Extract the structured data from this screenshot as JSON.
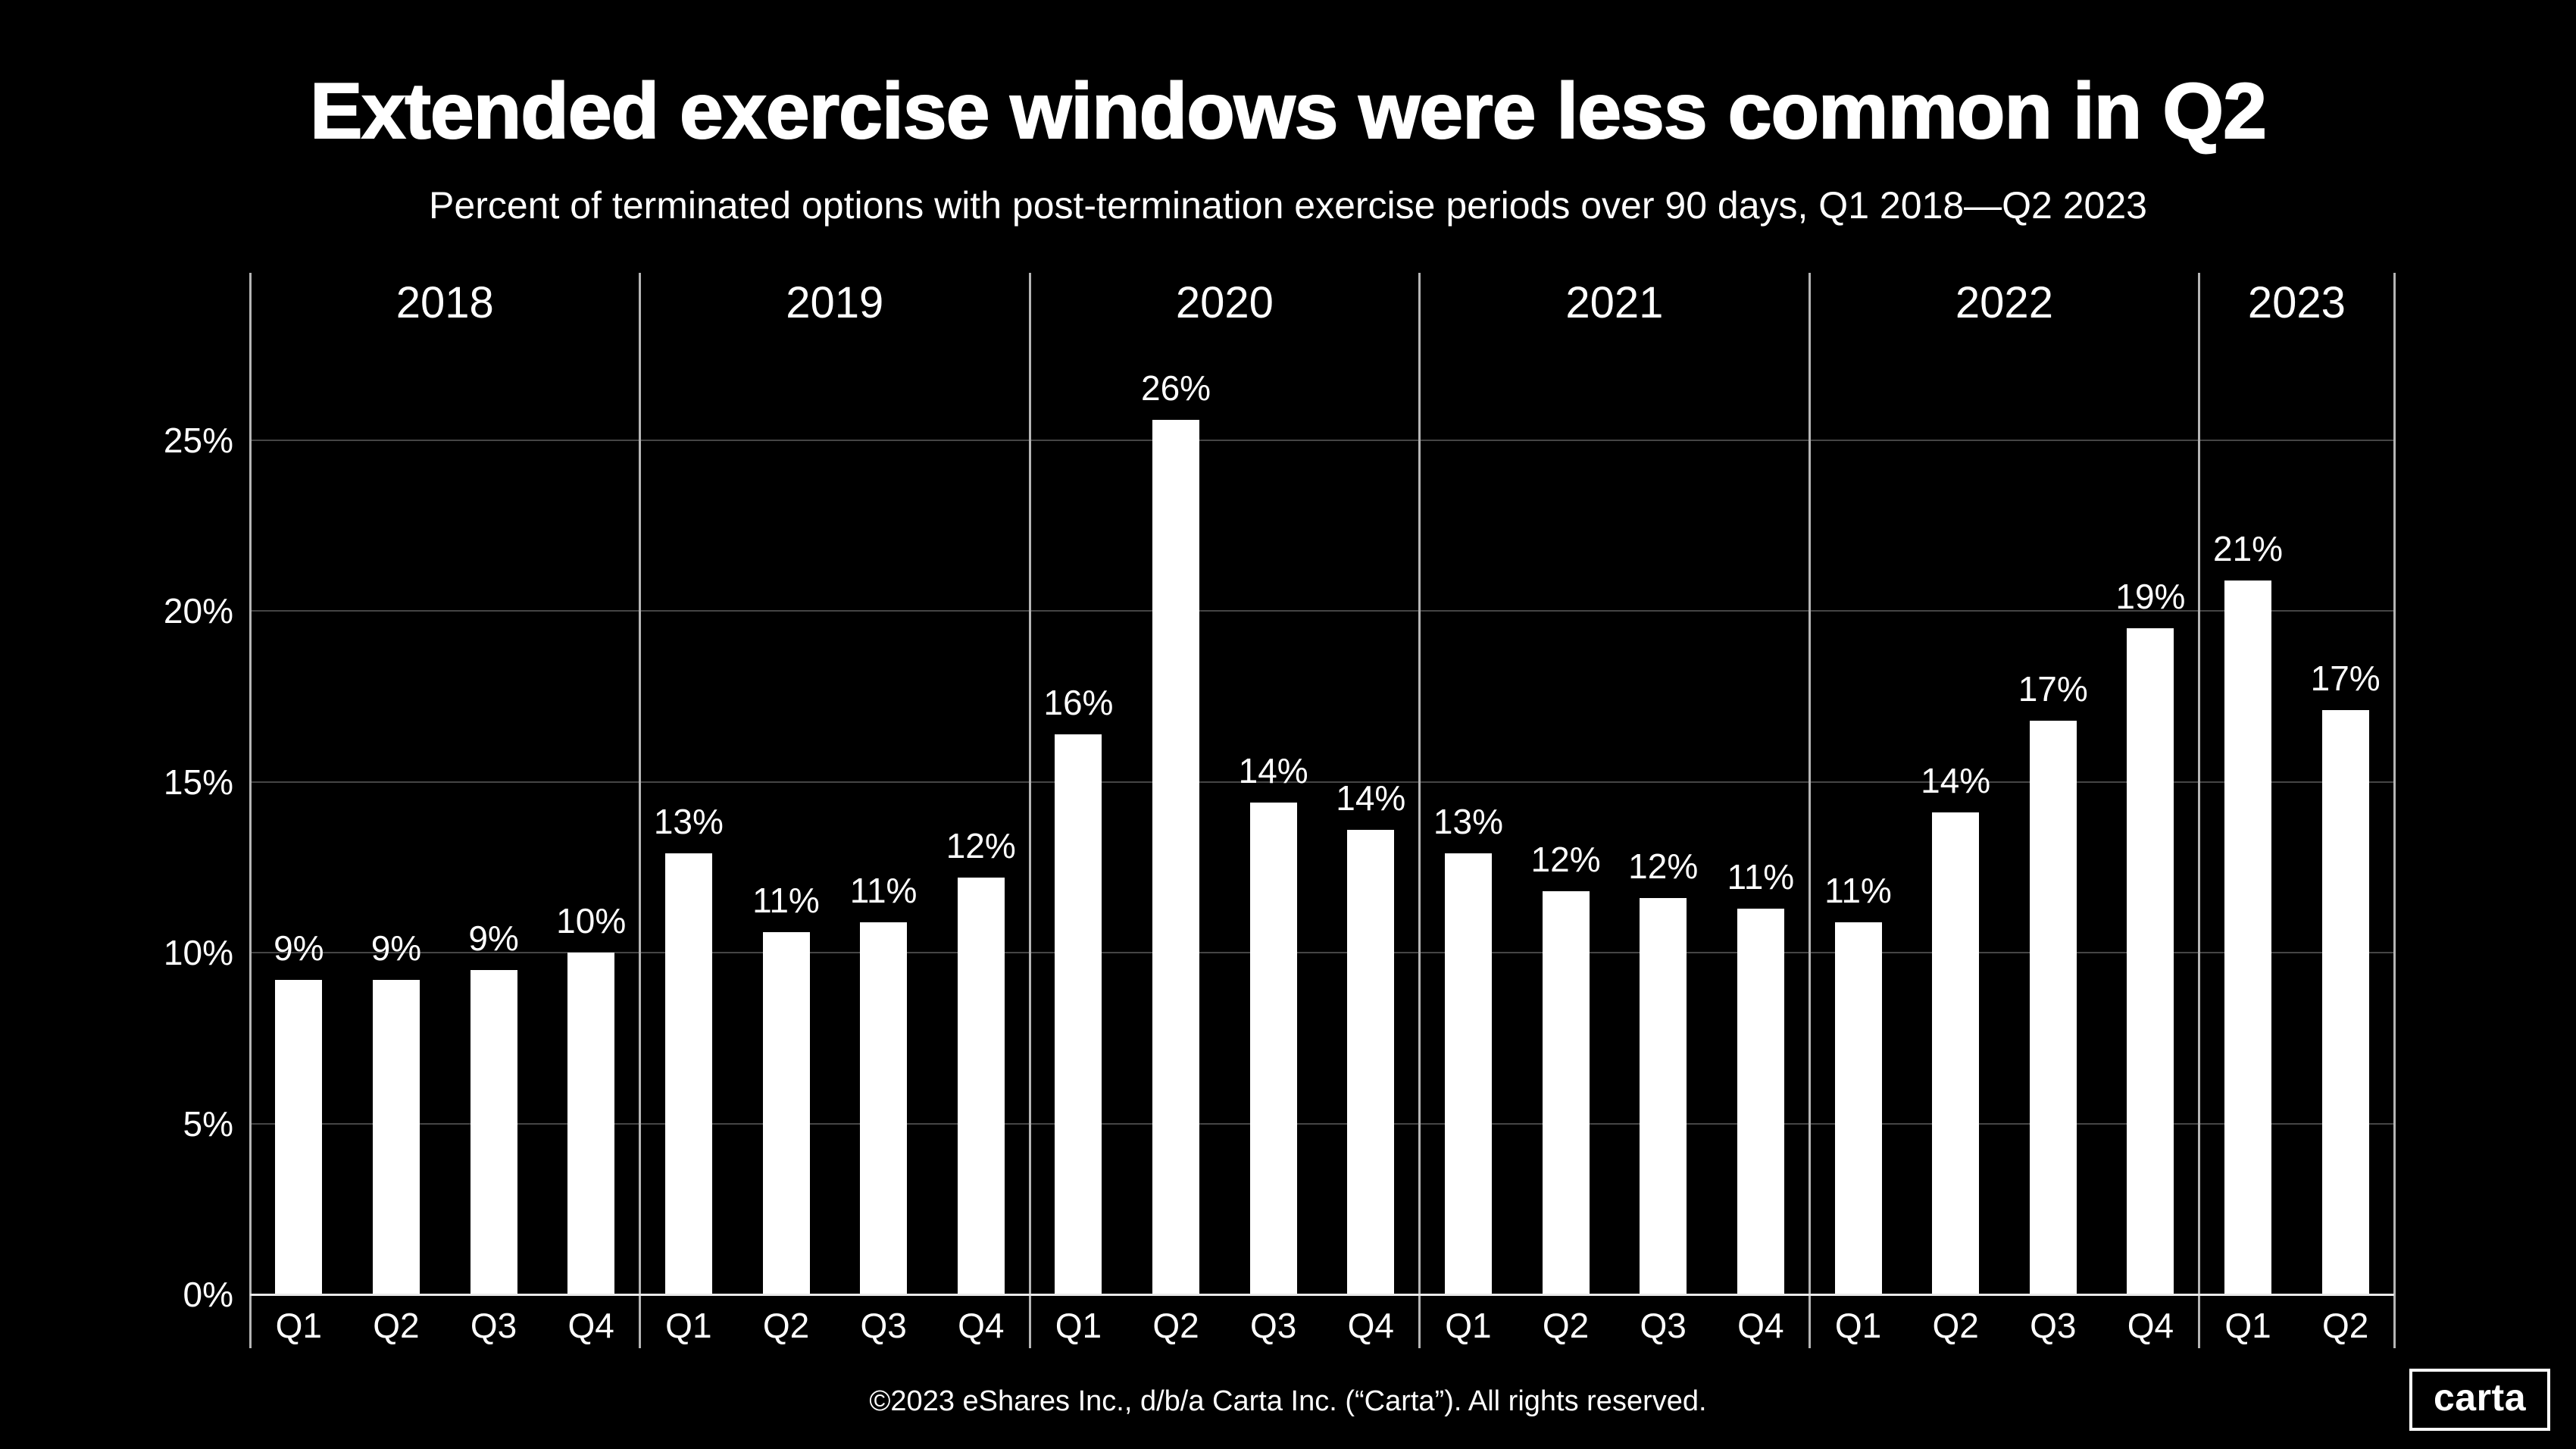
{
  "header": {
    "title": "Extended exercise windows were less common in Q2",
    "subtitle": "Percent of terminated options with post-termination exercise periods over 90 days, Q1 2018—Q2 2023"
  },
  "footer": {
    "text": "©2023 eShares Inc., d/b/a Carta Inc. (“Carta”). All rights reserved."
  },
  "logo": {
    "text": "carta"
  },
  "colors": {
    "background": "#000000",
    "bar": "#ffffff",
    "text": "#ffffff",
    "gridline": "#454545",
    "separator": "#b5b5b5",
    "baseline": "#e9e9e9"
  },
  "chart_data": {
    "type": "bar",
    "title": "Extended exercise windows were less common in Q2",
    "subtitle": "Percent of terminated options with post-termination exercise periods over 90 days, Q1 2018—Q2 2023",
    "unit": "%",
    "xlabel": "",
    "ylabel": "",
    "ylim": [
      0,
      30
    ],
    "grid": "horizontal",
    "legend": "none",
    "yticks": [
      0,
      5,
      10,
      15,
      20,
      25
    ],
    "ytick_labels": [
      "0%",
      "5%",
      "10%",
      "15%",
      "20%",
      "25%"
    ],
    "groups": [
      {
        "year": "2018",
        "categories": [
          "Q1",
          "Q2",
          "Q3",
          "Q4"
        ],
        "labels": [
          "9%",
          "9%",
          "9%",
          "10%"
        ],
        "values": [
          9.2,
          9.2,
          9.5,
          10.0
        ]
      },
      {
        "year": "2019",
        "categories": [
          "Q1",
          "Q2",
          "Q3",
          "Q4"
        ],
        "labels": [
          "13%",
          "11%",
          "11%",
          "12%"
        ],
        "values": [
          12.9,
          10.6,
          10.9,
          12.2
        ]
      },
      {
        "year": "2020",
        "categories": [
          "Q1",
          "Q2",
          "Q3",
          "Q4"
        ],
        "labels": [
          "16%",
          "26%",
          "14%",
          "14%"
        ],
        "values": [
          16.4,
          25.6,
          14.4,
          13.6
        ]
      },
      {
        "year": "2021",
        "categories": [
          "Q1",
          "Q2",
          "Q3",
          "Q4"
        ],
        "labels": [
          "13%",
          "12%",
          "12%",
          "11%"
        ],
        "values": [
          12.9,
          11.8,
          11.6,
          11.3
        ]
      },
      {
        "year": "2022",
        "categories": [
          "Q1",
          "Q2",
          "Q3",
          "Q4"
        ],
        "labels": [
          "11%",
          "14%",
          "17%",
          "19%"
        ],
        "values": [
          10.9,
          14.1,
          16.8,
          19.5
        ]
      },
      {
        "year": "2023",
        "categories": [
          "Q1",
          "Q2"
        ],
        "labels": [
          "21%",
          "17%"
        ],
        "values": [
          20.9,
          17.1
        ]
      }
    ]
  }
}
